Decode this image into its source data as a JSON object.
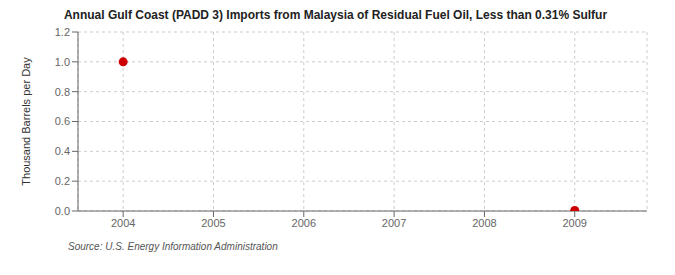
{
  "chart_data": {
    "type": "scatter",
    "title": "Annual Gulf Coast (PADD 3) Imports from Malaysia of Residual Fuel Oil, Less than 0.31% Sulfur",
    "ylabel": "Thousand Barrels per Day",
    "source": "Source: U.S. Energy Information Administration",
    "x": [
      2004,
      2009
    ],
    "values": [
      1.0,
      0.003
    ],
    "color": "#cc0000",
    "marker": "circle",
    "xlim": [
      2003.5,
      2009.8
    ],
    "xticks": [
      2004,
      2005,
      2006,
      2007,
      2008,
      2009
    ],
    "ylim": [
      0.0,
      1.2
    ],
    "yticks": [
      {
        "value": 0.0,
        "label": "0.0"
      },
      0.2,
      0.4,
      0.6,
      0.8,
      {
        "value": 1.0,
        "label": "1.0"
      },
      1.2
    ],
    "grid": true
  }
}
